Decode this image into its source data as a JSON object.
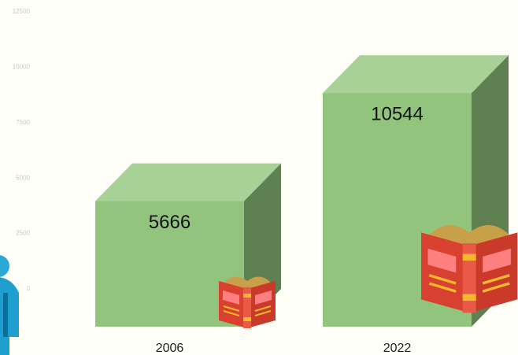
{
  "chart_data": {
    "type": "bar3d",
    "categories": [
      "2006",
      "2022"
    ],
    "values": [
      5666,
      10544
    ],
    "ylim": [
      0,
      12500
    ],
    "yticks": [
      0,
      2500,
      5000,
      7500,
      10000,
      12500
    ],
    "colors": {
      "front": "#93c47d",
      "top": "#a8d198",
      "side": "#5f8050"
    }
  }
}
